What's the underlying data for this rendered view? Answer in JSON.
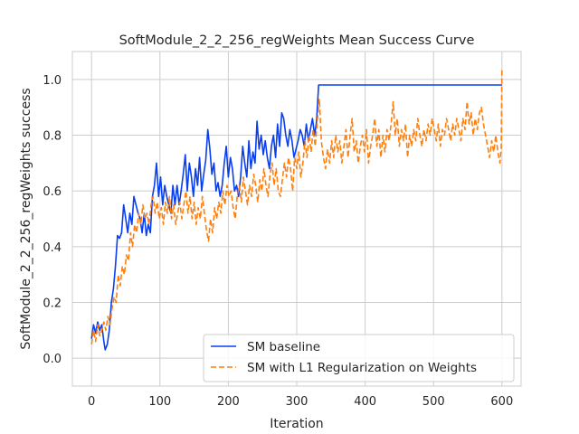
{
  "chart_data": {
    "type": "line",
    "title": "SoftModule_2_2_256_regWeights Mean Success Curve",
    "xlabel": "Iteration",
    "ylabel": "SoftModule_2_2_256_regWeights success",
    "xlim": [
      -28,
      628
    ],
    "ylim": [
      -0.1,
      1.1
    ],
    "xticks": [
      0,
      100,
      200,
      300,
      400,
      500,
      600
    ],
    "yticks": [
      0.0,
      0.2,
      0.4,
      0.6,
      0.8,
      1.0
    ],
    "xtick_labels": [
      "0",
      "100",
      "200",
      "300",
      "400",
      "500",
      "600"
    ],
    "ytick_labels": [
      "0.0",
      "0.2",
      "0.4",
      "0.6",
      "0.8",
      "1.0"
    ],
    "grid": true,
    "legend_position": "lower-right",
    "series": [
      {
        "name": "SM baseline",
        "color": "#0a3ff0",
        "style": "solid",
        "points": [
          [
            0,
            0.07
          ],
          [
            3,
            0.12
          ],
          [
            6,
            0.09
          ],
          [
            9,
            0.13
          ],
          [
            12,
            0.1
          ],
          [
            15,
            0.12
          ],
          [
            18,
            0.06
          ],
          [
            20,
            0.03
          ],
          [
            23,
            0.05
          ],
          [
            26,
            0.1
          ],
          [
            29,
            0.2
          ],
          [
            32,
            0.25
          ],
          [
            35,
            0.33
          ],
          [
            38,
            0.44
          ],
          [
            41,
            0.43
          ],
          [
            44,
            0.45
          ],
          [
            47,
            0.55
          ],
          [
            50,
            0.5
          ],
          [
            53,
            0.45
          ],
          [
            56,
            0.52
          ],
          [
            59,
            0.48
          ],
          [
            62,
            0.58
          ],
          [
            65,
            0.55
          ],
          [
            68,
            0.52
          ],
          [
            71,
            0.5
          ],
          [
            74,
            0.45
          ],
          [
            77,
            0.52
          ],
          [
            80,
            0.44
          ],
          [
            83,
            0.48
          ],
          [
            86,
            0.45
          ],
          [
            89,
            0.58
          ],
          [
            92,
            0.62
          ],
          [
            95,
            0.7
          ],
          [
            98,
            0.58
          ],
          [
            101,
            0.65
          ],
          [
            104,
            0.55
          ],
          [
            107,
            0.62
          ],
          [
            110,
            0.58
          ],
          [
            113,
            0.55
          ],
          [
            116,
            0.52
          ],
          [
            119,
            0.62
          ],
          [
            122,
            0.55
          ],
          [
            125,
            0.62
          ],
          [
            128,
            0.55
          ],
          [
            131,
            0.6
          ],
          [
            134,
            0.66
          ],
          [
            137,
            0.73
          ],
          [
            140,
            0.6
          ],
          [
            143,
            0.7
          ],
          [
            146,
            0.65
          ],
          [
            149,
            0.58
          ],
          [
            152,
            0.68
          ],
          [
            155,
            0.62
          ],
          [
            158,
            0.72
          ],
          [
            161,
            0.6
          ],
          [
            164,
            0.66
          ],
          [
            167,
            0.71
          ],
          [
            170,
            0.82
          ],
          [
            173,
            0.75
          ],
          [
            176,
            0.66
          ],
          [
            179,
            0.7
          ],
          [
            182,
            0.6
          ],
          [
            185,
            0.63
          ],
          [
            188,
            0.58
          ],
          [
            191,
            0.62
          ],
          [
            194,
            0.7
          ],
          [
            197,
            0.76
          ],
          [
            200,
            0.65
          ],
          [
            203,
            0.72
          ],
          [
            206,
            0.68
          ],
          [
            209,
            0.6
          ],
          [
            212,
            0.62
          ],
          [
            215,
            0.58
          ],
          [
            218,
            0.65
          ],
          [
            221,
            0.76
          ],
          [
            224,
            0.7
          ],
          [
            227,
            0.65
          ],
          [
            230,
            0.78
          ],
          [
            233,
            0.68
          ],
          [
            236,
            0.74
          ],
          [
            239,
            0.7
          ],
          [
            242,
            0.85
          ],
          [
            245,
            0.75
          ],
          [
            248,
            0.8
          ],
          [
            251,
            0.73
          ],
          [
            254,
            0.78
          ],
          [
            257,
            0.72
          ],
          [
            260,
            0.68
          ],
          [
            263,
            0.76
          ],
          [
            266,
            0.8
          ],
          [
            269,
            0.72
          ],
          [
            272,
            0.84
          ],
          [
            275,
            0.76
          ],
          [
            278,
            0.88
          ],
          [
            281,
            0.86
          ],
          [
            284,
            0.8
          ],
          [
            287,
            0.76
          ],
          [
            290,
            0.82
          ],
          [
            293,
            0.78
          ],
          [
            296,
            0.72
          ],
          [
            299,
            0.75
          ],
          [
            302,
            0.78
          ],
          [
            305,
            0.82
          ],
          [
            308,
            0.8
          ],
          [
            311,
            0.76
          ],
          [
            314,
            0.84
          ],
          [
            317,
            0.78
          ],
          [
            320,
            0.82
          ],
          [
            323,
            0.86
          ],
          [
            326,
            0.8
          ],
          [
            329,
            0.85
          ],
          [
            332,
            0.98
          ],
          [
            600,
            0.98
          ]
        ]
      },
      {
        "name": "SM with L1 Regularization on Weights",
        "color": "#ff7f0e",
        "style": "dashed",
        "points": [
          [
            0,
            0.05
          ],
          [
            3,
            0.1
          ],
          [
            6,
            0.06
          ],
          [
            9,
            0.12
          ],
          [
            12,
            0.08
          ],
          [
            15,
            0.1
          ],
          [
            18,
            0.13
          ],
          [
            21,
            0.1
          ],
          [
            24,
            0.15
          ],
          [
            27,
            0.12
          ],
          [
            30,
            0.18
          ],
          [
            33,
            0.22
          ],
          [
            36,
            0.2
          ],
          [
            39,
            0.3
          ],
          [
            42,
            0.26
          ],
          [
            45,
            0.33
          ],
          [
            48,
            0.3
          ],
          [
            51,
            0.37
          ],
          [
            54,
            0.35
          ],
          [
            57,
            0.45
          ],
          [
            60,
            0.4
          ],
          [
            63,
            0.48
          ],
          [
            66,
            0.45
          ],
          [
            69,
            0.52
          ],
          [
            72,
            0.48
          ],
          [
            75,
            0.55
          ],
          [
            78,
            0.5
          ],
          [
            81,
            0.52
          ],
          [
            84,
            0.48
          ],
          [
            87,
            0.55
          ],
          [
            90,
            0.58
          ],
          [
            93,
            0.52
          ],
          [
            96,
            0.56
          ],
          [
            99,
            0.5
          ],
          [
            102,
            0.54
          ],
          [
            105,
            0.48
          ],
          [
            108,
            0.56
          ],
          [
            111,
            0.52
          ],
          [
            114,
            0.58
          ],
          [
            117,
            0.5
          ],
          [
            120,
            0.55
          ],
          [
            123,
            0.48
          ],
          [
            126,
            0.52
          ],
          [
            129,
            0.56
          ],
          [
            132,
            0.5
          ],
          [
            135,
            0.55
          ],
          [
            138,
            0.6
          ],
          [
            141,
            0.52
          ],
          [
            144,
            0.58
          ],
          [
            147,
            0.5
          ],
          [
            150,
            0.56
          ],
          [
            153,
            0.48
          ],
          [
            156,
            0.54
          ],
          [
            159,
            0.5
          ],
          [
            162,
            0.58
          ],
          [
            165,
            0.52
          ],
          [
            168,
            0.46
          ],
          [
            171,
            0.42
          ],
          [
            174,
            0.5
          ],
          [
            177,
            0.45
          ],
          [
            180,
            0.54
          ],
          [
            183,
            0.5
          ],
          [
            186,
            0.56
          ],
          [
            189,
            0.52
          ],
          [
            192,
            0.6
          ],
          [
            195,
            0.55
          ],
          [
            198,
            0.62
          ],
          [
            201,
            0.58
          ],
          [
            204,
            0.6
          ],
          [
            207,
            0.54
          ],
          [
            210,
            0.5
          ],
          [
            213,
            0.58
          ],
          [
            216,
            0.62
          ],
          [
            219,
            0.56
          ],
          [
            222,
            0.65
          ],
          [
            225,
            0.6
          ],
          [
            228,
            0.55
          ],
          [
            231,
            0.62
          ],
          [
            234,
            0.58
          ],
          [
            237,
            0.66
          ],
          [
            240,
            0.62
          ],
          [
            243,
            0.56
          ],
          [
            246,
            0.64
          ],
          [
            249,
            0.6
          ],
          [
            252,
            0.68
          ],
          [
            255,
            0.62
          ],
          [
            258,
            0.58
          ],
          [
            261,
            0.66
          ],
          [
            264,
            0.7
          ],
          [
            267,
            0.62
          ],
          [
            270,
            0.68
          ],
          [
            273,
            0.6
          ],
          [
            276,
            0.58
          ],
          [
            279,
            0.64
          ],
          [
            282,
            0.7
          ],
          [
            285,
            0.65
          ],
          [
            288,
            0.72
          ],
          [
            291,
            0.68
          ],
          [
            294,
            0.6
          ],
          [
            297,
            0.72
          ],
          [
            300,
            0.68
          ],
          [
            303,
            0.74
          ],
          [
            306,
            0.65
          ],
          [
            309,
            0.7
          ],
          [
            312,
            0.78
          ],
          [
            315,
            0.72
          ],
          [
            318,
            0.8
          ],
          [
            321,
            0.74
          ],
          [
            324,
            0.82
          ],
          [
            327,
            0.76
          ],
          [
            330,
            0.85
          ],
          [
            333,
            0.93
          ],
          [
            336,
            0.78
          ],
          [
            339,
            0.72
          ],
          [
            342,
            0.68
          ],
          [
            345,
            0.75
          ],
          [
            348,
            0.7
          ],
          [
            351,
            0.78
          ],
          [
            354,
            0.72
          ],
          [
            357,
            0.8
          ],
          [
            360,
            0.74
          ],
          [
            363,
            0.78
          ],
          [
            366,
            0.7
          ],
          [
            369,
            0.76
          ],
          [
            372,
            0.82
          ],
          [
            375,
            0.72
          ],
          [
            378,
            0.8
          ],
          [
            381,
            0.86
          ],
          [
            384,
            0.74
          ],
          [
            387,
            0.78
          ],
          [
            390,
            0.7
          ],
          [
            393,
            0.76
          ],
          [
            396,
            0.8
          ],
          [
            399,
            0.74
          ],
          [
            402,
            0.82
          ],
          [
            405,
            0.7
          ],
          [
            408,
            0.76
          ],
          [
            411,
            0.8
          ],
          [
            414,
            0.86
          ],
          [
            417,
            0.76
          ],
          [
            420,
            0.82
          ],
          [
            423,
            0.72
          ],
          [
            426,
            0.8
          ],
          [
            429,
            0.74
          ],
          [
            432,
            0.82
          ],
          [
            435,
            0.78
          ],
          [
            438,
            0.84
          ],
          [
            441,
            0.92
          ],
          [
            444,
            0.8
          ],
          [
            447,
            0.86
          ],
          [
            450,
            0.76
          ],
          [
            453,
            0.82
          ],
          [
            456,
            0.78
          ],
          [
            459,
            0.84
          ],
          [
            462,
            0.72
          ],
          [
            465,
            0.8
          ],
          [
            468,
            0.76
          ],
          [
            471,
            0.82
          ],
          [
            474,
            0.78
          ],
          [
            477,
            0.86
          ],
          [
            480,
            0.8
          ],
          [
            483,
            0.76
          ],
          [
            486,
            0.82
          ],
          [
            489,
            0.78
          ],
          [
            492,
            0.84
          ],
          [
            495,
            0.8
          ],
          [
            498,
            0.86
          ],
          [
            501,
            0.82
          ],
          [
            504,
            0.78
          ],
          [
            507,
            0.84
          ],
          [
            510,
            0.76
          ],
          [
            513,
            0.82
          ],
          [
            516,
            0.8
          ],
          [
            519,
            0.86
          ],
          [
            522,
            0.82
          ],
          [
            525,
            0.78
          ],
          [
            528,
            0.84
          ],
          [
            531,
            0.8
          ],
          [
            534,
            0.86
          ],
          [
            537,
            0.82
          ],
          [
            540,
            0.78
          ],
          [
            543,
            0.86
          ],
          [
            546,
            0.82
          ],
          [
            549,
            0.92
          ],
          [
            552,
            0.84
          ],
          [
            555,
            0.88
          ],
          [
            558,
            0.8
          ],
          [
            561,
            0.86
          ],
          [
            564,
            0.82
          ],
          [
            567,
            0.88
          ],
          [
            570,
            0.9
          ],
          [
            573,
            0.84
          ],
          [
            576,
            0.8
          ],
          [
            579,
            0.76
          ],
          [
            582,
            0.72
          ],
          [
            585,
            0.78
          ],
          [
            588,
            0.74
          ],
          [
            591,
            0.8
          ],
          [
            594,
            0.74
          ],
          [
            597,
            0.7
          ],
          [
            599,
            0.76
          ],
          [
            600,
            1.04
          ]
        ]
      }
    ]
  }
}
